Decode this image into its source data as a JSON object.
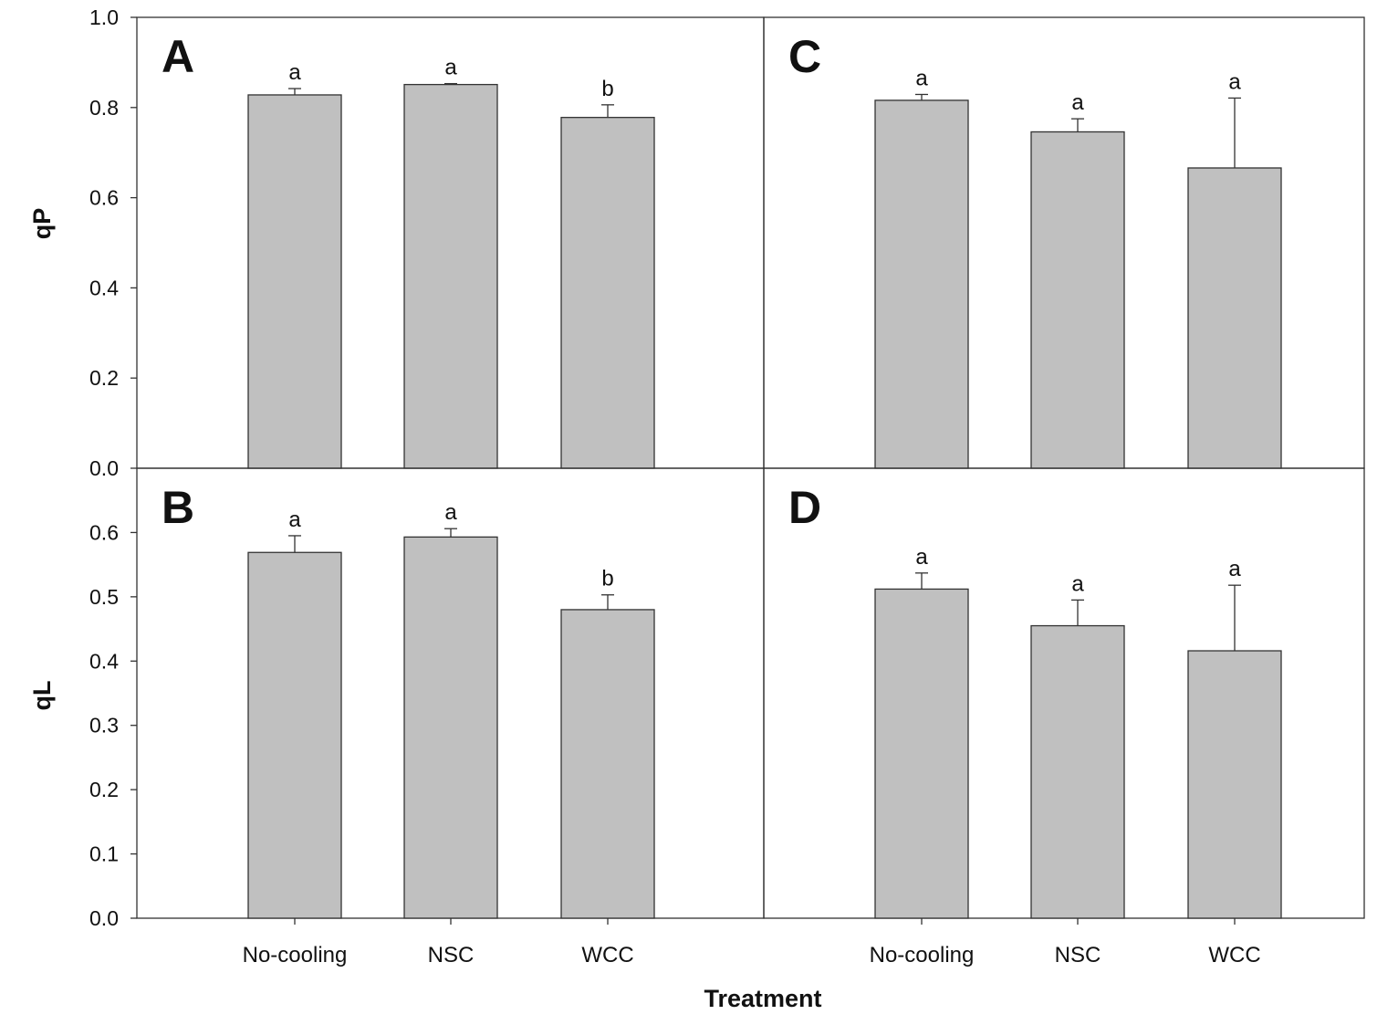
{
  "chart_data": {
    "type": "bar",
    "xlabel": "Treatment",
    "categories": [
      "No-cooling",
      "NSC",
      "WCC"
    ],
    "bar_color": "#c0c0c0",
    "panels": [
      {
        "label": "A",
        "ylabel": "qP",
        "ylim": [
          0,
          1.0
        ],
        "yticks": [
          "0.0",
          "0.2",
          "0.4",
          "0.6",
          "0.8",
          "1.0"
        ],
        "values": [
          0.828,
          0.851,
          0.778
        ],
        "errors": [
          0.014,
          0.002,
          0.028
        ],
        "significance": [
          "a",
          "a",
          "b"
        ]
      },
      {
        "label": "C",
        "ylabel": "qP",
        "ylim": [
          0,
          1.0
        ],
        "yticks": [
          "0.0",
          "0.2",
          "0.4",
          "0.6",
          "0.8",
          "1.0"
        ],
        "values": [
          0.816,
          0.746,
          0.666
        ],
        "errors": [
          0.013,
          0.029,
          0.155
        ],
        "significance": [
          "a",
          "a",
          "a"
        ]
      },
      {
        "label": "B",
        "ylabel": "qL",
        "ylim": [
          0,
          0.7
        ],
        "yticks": [
          "0.0",
          "0.1",
          "0.2",
          "0.3",
          "0.4",
          "0.5",
          "0.6"
        ],
        "values": [
          0.569,
          0.593,
          0.48
        ],
        "errors": [
          0.026,
          0.013,
          0.023
        ],
        "significance": [
          "a",
          "a",
          "b"
        ]
      },
      {
        "label": "D",
        "ylabel": "qL",
        "ylim": [
          0,
          0.7
        ],
        "yticks": [
          "0.0",
          "0.1",
          "0.2",
          "0.3",
          "0.4",
          "0.5",
          "0.6"
        ],
        "values": [
          0.512,
          0.455,
          0.416
        ],
        "errors": [
          0.025,
          0.04,
          0.102
        ],
        "significance": [
          "a",
          "a",
          "a"
        ]
      }
    ]
  }
}
